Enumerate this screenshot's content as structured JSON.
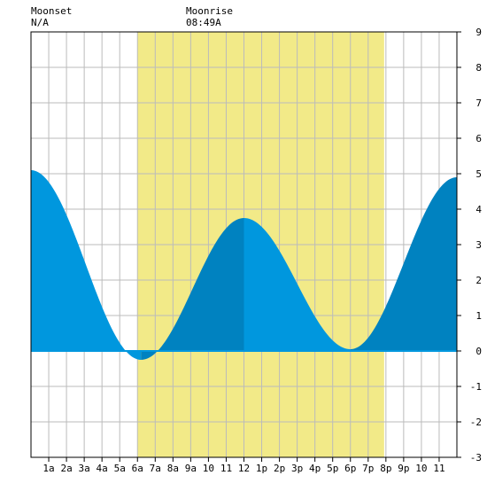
{
  "header": {
    "moonset_label": "Moonset",
    "moonset_time": "N/A",
    "moonrise_label": "Moonrise",
    "moonrise_time": "08:49A"
  },
  "chart_data": {
    "type": "area",
    "x_unit": "hour of day",
    "x_range": [
      0,
      24
    ],
    "ylim": [
      -3,
      9
    ],
    "y_ticks": [
      "-3",
      "-2",
      "-1",
      "0",
      "1",
      "2",
      "3",
      "4",
      "5",
      "6",
      "7",
      "8",
      "9"
    ],
    "x_tick_labels": [
      "1a",
      "2a",
      "3a",
      "4a",
      "5a",
      "6a",
      "7a",
      "8a",
      "9a",
      "10",
      "11",
      "12",
      "1p",
      "2p",
      "3p",
      "4p",
      "5p",
      "6p",
      "7p",
      "8p",
      "9p",
      "10",
      "11"
    ],
    "grid": true,
    "daylight_band": {
      "start_hour": 6.0,
      "end_hour": 19.9
    },
    "tide_extremes": [
      {
        "hour": 0.0,
        "level": 5.1
      },
      {
        "hour": 6.2,
        "level": -0.25
      },
      {
        "hour": 12.0,
        "level": 3.75
      },
      {
        "hour": 18.0,
        "level": 0.05
      },
      {
        "hour": 24.0,
        "level": 4.9
      }
    ],
    "colors": {
      "daylight": "#f2ea88",
      "tide_light": "#0097de",
      "tide_dark": "#0082c0",
      "grid": "#bbbbbb",
      "axis": "#000000"
    }
  }
}
